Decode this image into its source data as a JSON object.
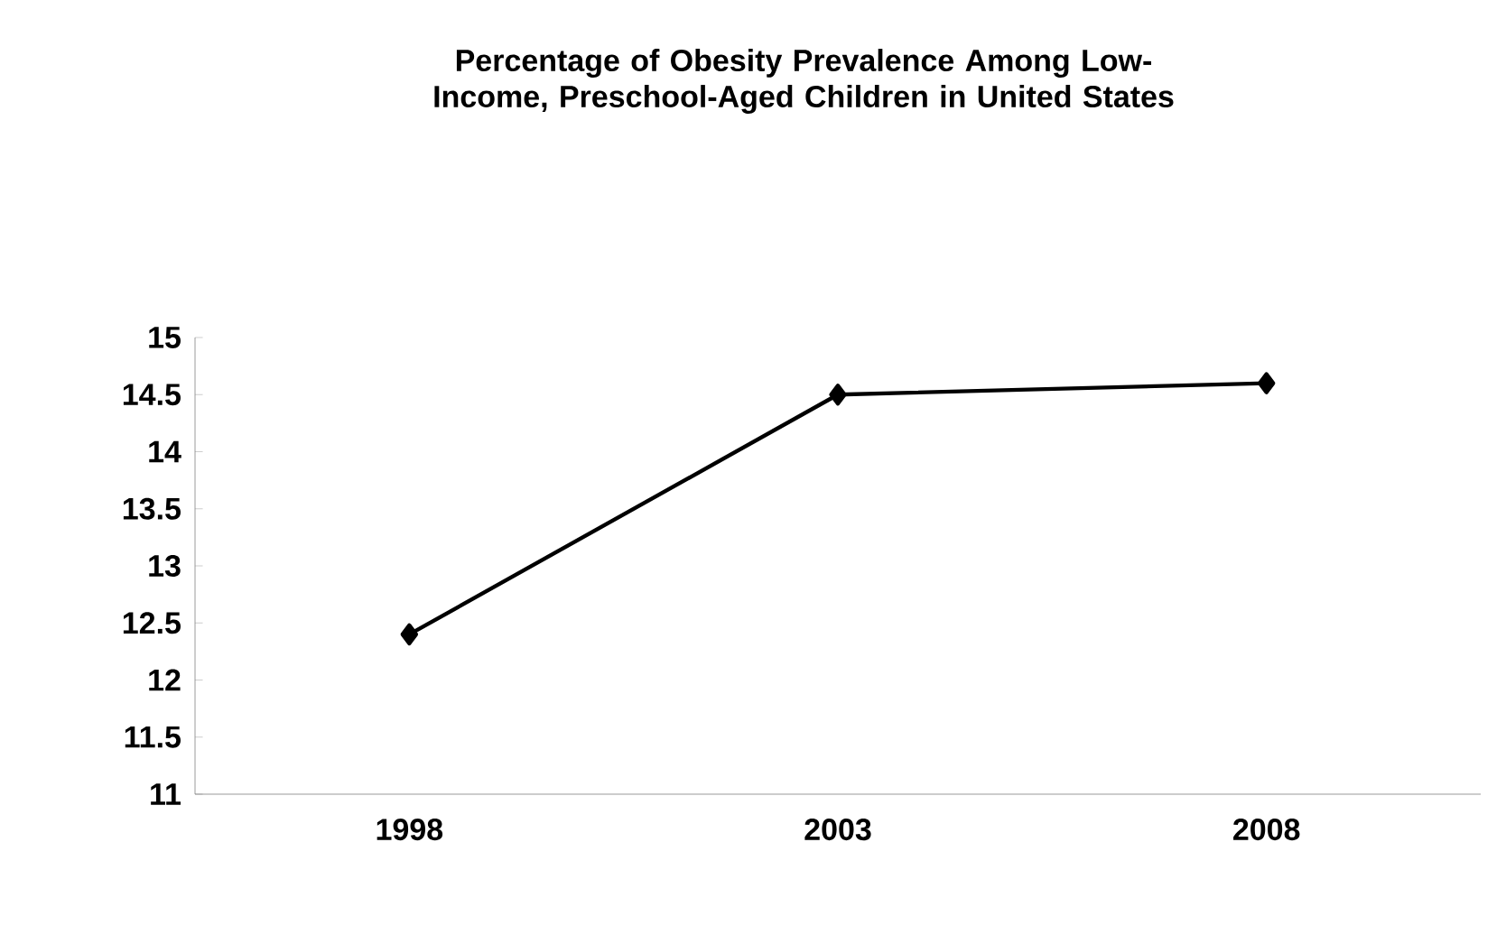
{
  "chart_data": {
    "type": "line",
    "title": "Percentage of Obesity Prevalence Among Low-Income, Preschool-Aged Children in United States",
    "categories": [
      "1998",
      "2003",
      "2008"
    ],
    "series": [
      {
        "color": "#000000",
        "values": [
          12.4,
          14.5,
          14.6
        ]
      }
    ],
    "ylim": [
      11,
      15
    ],
    "yticks": [
      11,
      11.5,
      12,
      12.5,
      13,
      13.5,
      14,
      14.5,
      15
    ],
    "marker": "diamond",
    "line_style": "solid",
    "grid": false
  }
}
